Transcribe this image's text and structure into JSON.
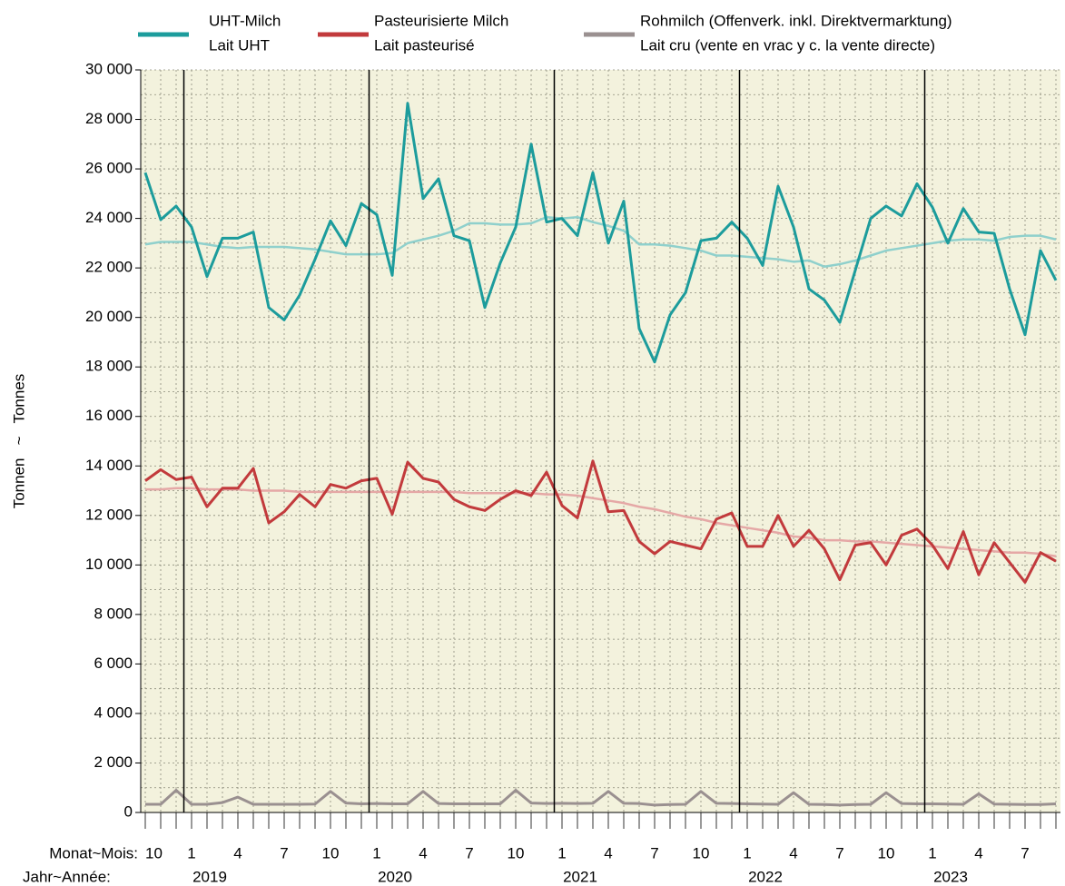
{
  "chart_data": {
    "type": "line",
    "y_label": "Tonnen   ~   Tonnes",
    "x_label_month": "Monat~Mois:",
    "x_label_year": "Jahr~Année:",
    "categories": [
      "10",
      null,
      null,
      "1",
      null,
      null,
      "4",
      null,
      null,
      "7",
      null,
      null,
      "10",
      null,
      null,
      "1",
      null,
      null,
      "4",
      null,
      null,
      "7",
      null,
      null,
      "10",
      null,
      null,
      "1",
      null,
      null,
      "4",
      null,
      null,
      "7",
      null,
      null,
      "10",
      null,
      null,
      "1",
      null,
      null,
      "4",
      null,
      null,
      "7",
      null,
      null,
      "10",
      null,
      null,
      "1",
      null,
      null,
      "4",
      null,
      null,
      "7",
      null,
      null
    ],
    "year_categories": [
      null,
      null,
      null,
      "2019",
      null,
      null,
      null,
      null,
      null,
      null,
      null,
      null,
      null,
      null,
      null,
      "2020",
      null,
      null,
      null,
      null,
      null,
      null,
      null,
      null,
      null,
      null,
      null,
      "2021",
      null,
      null,
      null,
      null,
      null,
      null,
      null,
      null,
      null,
      null,
      null,
      "2022",
      null,
      null,
      null,
      null,
      null,
      null,
      null,
      null,
      null,
      null,
      null,
      "2023",
      null,
      null,
      null,
      null,
      null,
      null,
      null,
      null
    ],
    "series": [
      {
        "name": "UHT-Milch",
        "name_fr": "Lait UHT",
        "color": "#1c9c9c",
        "values": [
          25850,
          23950,
          24500,
          23650,
          21650,
          23200,
          23200,
          23450,
          20400,
          19900,
          20900,
          22350,
          23900,
          22900,
          24600,
          24150,
          21700,
          28650,
          24800,
          25600,
          23300,
          23100,
          20400,
          22200,
          23650,
          27000,
          23850,
          24000,
          23300,
          25850,
          23000,
          24700,
          19550,
          18200,
          20100,
          21000,
          23100,
          23200,
          23850,
          23200,
          22100,
          25300,
          23650,
          21150,
          20700,
          19800,
          21900,
          24000,
          24500,
          24100,
          25400,
          24450,
          23000,
          24400,
          23450,
          23400,
          21150,
          19300,
          22700,
          21500
        ]
      },
      {
        "name": "Pasteurisierte Milch",
        "name_fr": "Lait pasteurisé",
        "color": "#c23a3c",
        "values": [
          13400,
          13850,
          13450,
          13550,
          12350,
          13100,
          13100,
          13900,
          11700,
          12150,
          12850,
          12350,
          13250,
          13100,
          13400,
          13500,
          12050,
          14150,
          13500,
          13350,
          12650,
          12350,
          12200,
          12650,
          13000,
          12800,
          13750,
          12400,
          11900,
          14200,
          12150,
          12200,
          10950,
          10450,
          10950,
          10800,
          10650,
          11850,
          12100,
          10750,
          10750,
          12000,
          10750,
          11400,
          10650,
          9400,
          10800,
          10900,
          10000,
          11200,
          11450,
          10800,
          9850,
          11350,
          9600,
          10900,
          10100,
          9300,
          10500,
          10150
        ]
      },
      {
        "name": "Rohmilch (Offenverk. inkl. Direktvermarktung)",
        "name_fr": "Lait cru (vente en vrac y c. la vente directe)",
        "color": "#9a9090",
        "values": [
          330,
          330,
          900,
          330,
          330,
          400,
          620,
          330,
          330,
          330,
          330,
          340,
          850,
          380,
          350,
          360,
          350,
          350,
          850,
          360,
          350,
          350,
          350,
          350,
          900,
          380,
          360,
          370,
          360,
          370,
          850,
          370,
          360,
          300,
          320,
          330,
          850,
          370,
          360,
          350,
          340,
          330,
          800,
          330,
          320,
          300,
          320,
          330,
          800,
          360,
          350,
          350,
          340,
          330,
          750,
          340,
          330,
          320,
          320,
          350
        ]
      }
    ],
    "trend_series": [
      {
        "color": "#8fd0cc",
        "values": [
          22950,
          23050,
          23050,
          23050,
          22950,
          22850,
          22800,
          22850,
          22850,
          22850,
          22800,
          22750,
          22650,
          22550,
          22550,
          22550,
          22600,
          23000,
          23150,
          23300,
          23500,
          23800,
          23800,
          23750,
          23750,
          23800,
          24050,
          24000,
          24050,
          23850,
          23700,
          23500,
          22950,
          22950,
          22900,
          22800,
          22700,
          22500,
          22500,
          22450,
          22400,
          22350,
          22250,
          22300,
          22050,
          22150,
          22300,
          22500,
          22700,
          22800,
          22900,
          23000,
          23100,
          23150,
          23150,
          23100,
          23250,
          23300,
          23300,
          23150
        ]
      },
      {
        "color": "#e5a8a6",
        "values": [
          13050,
          13050,
          13100,
          13100,
          13050,
          13050,
          13050,
          13000,
          13000,
          13000,
          12950,
          12950,
          12950,
          12950,
          12950,
          12950,
          12950,
          12950,
          12950,
          12950,
          12950,
          12900,
          12900,
          12900,
          12900,
          12900,
          12850,
          12850,
          12800,
          12700,
          12600,
          12500,
          12350,
          12250,
          12100,
          11950,
          11850,
          11700,
          11600,
          11500,
          11400,
          11300,
          11150,
          11100,
          11000,
          11000,
          10950,
          10950,
          10900,
          10850,
          10800,
          10750,
          10700,
          10650,
          10600,
          10550,
          10500,
          10500,
          10450,
          10350
        ]
      }
    ],
    "ylim": [
      0,
      30000
    ],
    "yticks": [
      0,
      {
        "value": 2000,
        "label": "2 000"
      },
      {
        "value": 4000,
        "label": "4 000"
      },
      {
        "value": 6000,
        "label": "6 000"
      },
      {
        "value": 8000,
        "label": "8 000"
      },
      {
        "value": 10000,
        "label": "10 000"
      },
      {
        "value": 12000,
        "label": "12 000"
      },
      {
        "value": 14000,
        "label": "14 000"
      },
      {
        "value": 16000,
        "label": "16 000"
      },
      {
        "value": 18000,
        "label": "18 000"
      },
      {
        "value": 20000,
        "label": "20 000"
      },
      {
        "value": 22000,
        "label": "22 000"
      },
      {
        "value": 24000,
        "label": "24 000"
      },
      {
        "value": 26000,
        "label": "26 000"
      },
      {
        "value": 28000,
        "label": "28 000"
      },
      {
        "value": 30000,
        "label": "30 000"
      }
    ],
    "grid": true,
    "background": "#f3f2dd"
  }
}
